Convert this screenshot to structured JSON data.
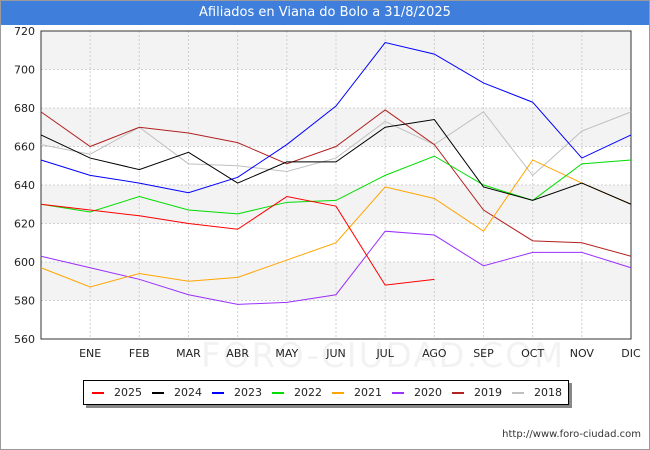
{
  "title": "Afiliados en Viana do Bolo a 31/8/2025",
  "footer_url": "http://www.foro-ciudad.com",
  "watermark": "FORO-CIUDAD.COM",
  "colors": {
    "title_bg": "#3f7fdb",
    "band": "#f3f3f3",
    "grid": "#d0d0d0",
    "axis": "#333333"
  },
  "chart_data": {
    "type": "line",
    "title": "Afiliados en Viana do Bolo a 31/8/2025",
    "xlabel": "",
    "ylabel": "",
    "categories": [
      "",
      "ENE",
      "FEB",
      "MAR",
      "ABR",
      "MAY",
      "JUN",
      "JUL",
      "AGO",
      "SEP",
      "OCT",
      "NOV",
      "DIC"
    ],
    "ylim": [
      560,
      720
    ],
    "yticks": [
      560,
      580,
      600,
      620,
      640,
      660,
      680,
      700,
      720
    ],
    "grid": true,
    "legend_position": "bottom",
    "series": [
      {
        "name": "2025",
        "color": "#ff0000",
        "values": [
          630,
          627,
          624,
          620,
          617,
          634,
          629,
          588,
          591,
          null,
          null,
          null,
          null
        ]
      },
      {
        "name": "2024",
        "color": "#000000",
        "values": [
          666,
          654,
          648,
          657,
          641,
          652,
          652,
          670,
          674,
          639,
          632,
          641,
          630
        ]
      },
      {
        "name": "2023",
        "color": "#0000ff",
        "values": [
          653,
          645,
          641,
          636,
          644,
          661,
          681,
          714,
          708,
          693,
          683,
          654,
          666
        ]
      },
      {
        "name": "2022",
        "color": "#00dd00",
        "values": [
          630,
          626,
          634,
          627,
          625,
          631,
          632,
          645,
          655,
          640,
          632,
          651,
          653
        ]
      },
      {
        "name": "2021",
        "color": "#ffa500",
        "values": [
          597,
          587,
          594,
          590,
          592,
          601,
          610,
          639,
          633,
          616,
          653,
          641,
          630
        ]
      },
      {
        "name": "2020",
        "color": "#9b30ff",
        "values": [
          603,
          597,
          591,
          583,
          578,
          579,
          583,
          616,
          614,
          598,
          605,
          605,
          597
        ]
      },
      {
        "name": "2019",
        "color": "#b22222",
        "values": [
          678,
          660,
          670,
          667,
          662,
          651,
          660,
          679,
          661,
          627,
          611,
          610,
          603
        ]
      },
      {
        "name": "2018",
        "color": "#c0c0c0",
        "values": [
          661,
          656,
          670,
          651,
          650,
          647,
          654,
          673,
          661,
          678,
          645,
          668,
          678
        ]
      }
    ]
  }
}
